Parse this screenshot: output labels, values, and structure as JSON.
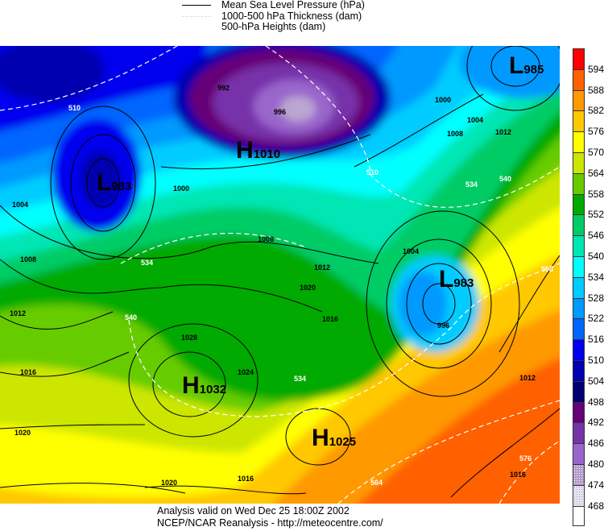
{
  "legend": {
    "items": [
      {
        "label": "Mean Sea Level Pressure (hPa)",
        "style": "solid-black"
      },
      {
        "label": "1000-500 hPa Thickness (dam)",
        "style": "dashed-white"
      },
      {
        "label": "500-hPa Heights (dam)",
        "style": "color-fill"
      }
    ]
  },
  "colorbar": {
    "labels": [
      "594",
      "588",
      "582",
      "576",
      "570",
      "564",
      "558",
      "552",
      "546",
      "540",
      "534",
      "528",
      "522",
      "516",
      "510",
      "504",
      "498",
      "492",
      "486",
      "480",
      "474",
      "468"
    ],
    "colors": [
      "#ff0000",
      "#ff6000",
      "#ff9900",
      "#ffc800",
      "#ffff00",
      "#cce600",
      "#66cc00",
      "#00aa00",
      "#00cc66",
      "#00e6b4",
      "#00ffff",
      "#00ccff",
      "#0099ff",
      "#0066ff",
      "#0000ee",
      "#0000b0",
      "#000070",
      "#660077",
      "#7733aa",
      "#9966cc",
      "#b399cc",
      "#ddddee",
      "#ffffff"
    ]
  },
  "pressure_centers": [
    {
      "type": "L",
      "value": "985"
    },
    {
      "type": "H",
      "value": "1010"
    },
    {
      "type": "L",
      "value": "983"
    },
    {
      "type": "L",
      "value": "983"
    },
    {
      "type": "H",
      "value": "1032"
    },
    {
      "type": "H",
      "value": "1025"
    }
  ],
  "isobar_labels": [
    "1004",
    "1008",
    "1012",
    "1016",
    "1020",
    "1028",
    "1024",
    "1020",
    "1016",
    "1012",
    "1008",
    "1000",
    "1004",
    "996",
    "1012",
    "1016",
    "1016",
    "1020",
    "1000",
    "1004",
    "1008",
    "1012",
    "996",
    "992"
  ],
  "thickness_labels": [
    "510",
    "510",
    "534",
    "540",
    "534",
    "564",
    "576",
    "534",
    "540",
    "558"
  ],
  "footer": {
    "line1": "Analysis valid on Wed Dec 25 18:00Z 2002",
    "line2": "NCEP/NCAR Reanalysis - http://meteocentre.com/"
  }
}
